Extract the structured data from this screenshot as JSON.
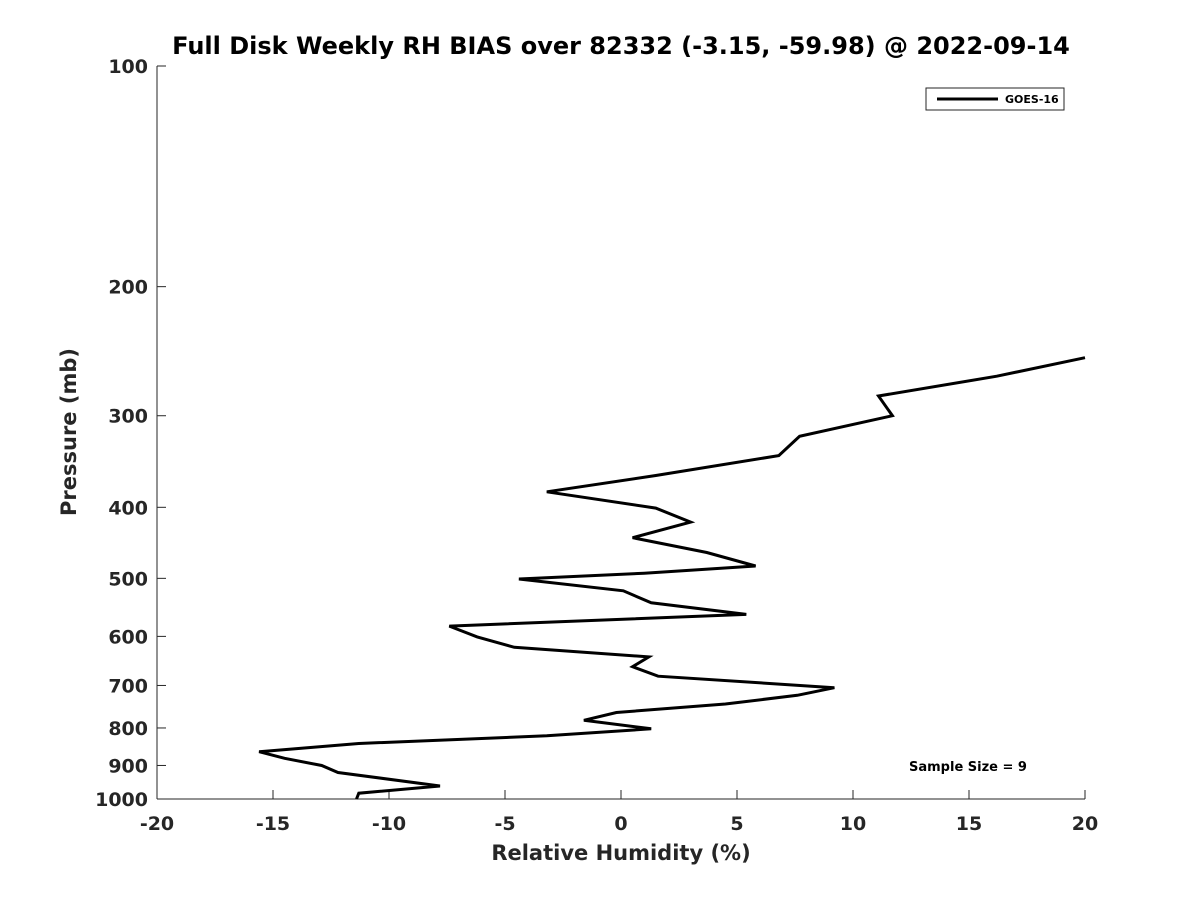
{
  "chart_data": {
    "type": "line",
    "title": "Full Disk Weekly RH BIAS over 82332 (-3.15, -59.98) @ 2022-09-14",
    "xlabel": "Relative Humidity (%)",
    "ylabel": "Pressure (mb)",
    "xlim": [
      -20,
      20
    ],
    "ylim": [
      100,
      1000
    ],
    "y_scale": "log",
    "y_reversed": true,
    "grid": false,
    "legend_position": "top-right",
    "x_ticks": [
      -20,
      -15,
      -10,
      -5,
      0,
      5,
      10,
      15,
      20
    ],
    "x_tick_labels": [
      "-20",
      "-15",
      "-10",
      "-5",
      "0",
      "5",
      "10",
      "15",
      "20"
    ],
    "y_ticks": [
      100,
      200,
      300,
      400,
      500,
      600,
      700,
      800,
      900,
      1000
    ],
    "y_tick_labels": [
      "100",
      "200",
      "300",
      "400",
      "500",
      "600",
      "700",
      "800",
      "900",
      "1000"
    ],
    "series": [
      {
        "name": "GOES-16",
        "color": "#000000",
        "points": [
          {
            "x": 20.0,
            "y": 250
          },
          {
            "x": 16.2,
            "y": 265
          },
          {
            "x": 11.1,
            "y": 282
          },
          {
            "x": 11.7,
            "y": 300
          },
          {
            "x": 7.7,
            "y": 320
          },
          {
            "x": 6.8,
            "y": 340
          },
          {
            "x": 1.5,
            "y": 362
          },
          {
            "x": -3.2,
            "y": 381
          },
          {
            "x": 1.5,
            "y": 401
          },
          {
            "x": 3.0,
            "y": 419
          },
          {
            "x": 0.5,
            "y": 440
          },
          {
            "x": 3.7,
            "y": 461
          },
          {
            "x": 5.8,
            "y": 481
          },
          {
            "x": 1.0,
            "y": 492
          },
          {
            "x": -4.4,
            "y": 501
          },
          {
            "x": 0.1,
            "y": 520
          },
          {
            "x": 1.3,
            "y": 540
          },
          {
            "x": 5.4,
            "y": 560
          },
          {
            "x": -7.4,
            "y": 581
          },
          {
            "x": -6.2,
            "y": 601
          },
          {
            "x": -4.6,
            "y": 621
          },
          {
            "x": 1.2,
            "y": 640
          },
          {
            "x": 0.5,
            "y": 660
          },
          {
            "x": 1.6,
            "y": 680
          },
          {
            "x": 9.2,
            "y": 705
          },
          {
            "x": 7.6,
            "y": 722
          },
          {
            "x": 4.5,
            "y": 742
          },
          {
            "x": -0.2,
            "y": 762
          },
          {
            "x": -1.6,
            "y": 781
          },
          {
            "x": 1.3,
            "y": 802
          },
          {
            "x": -3.2,
            "y": 820
          },
          {
            "x": -11.3,
            "y": 840
          },
          {
            "x": -15.6,
            "y": 862
          },
          {
            "x": -14.5,
            "y": 880
          },
          {
            "x": -12.9,
            "y": 900
          },
          {
            "x": -12.2,
            "y": 920
          },
          {
            "x": -7.8,
            "y": 960
          },
          {
            "x": -11.3,
            "y": 982
          },
          {
            "x": -11.4,
            "y": 1000
          }
        ]
      }
    ],
    "annotation": "Sample Size = 9"
  }
}
